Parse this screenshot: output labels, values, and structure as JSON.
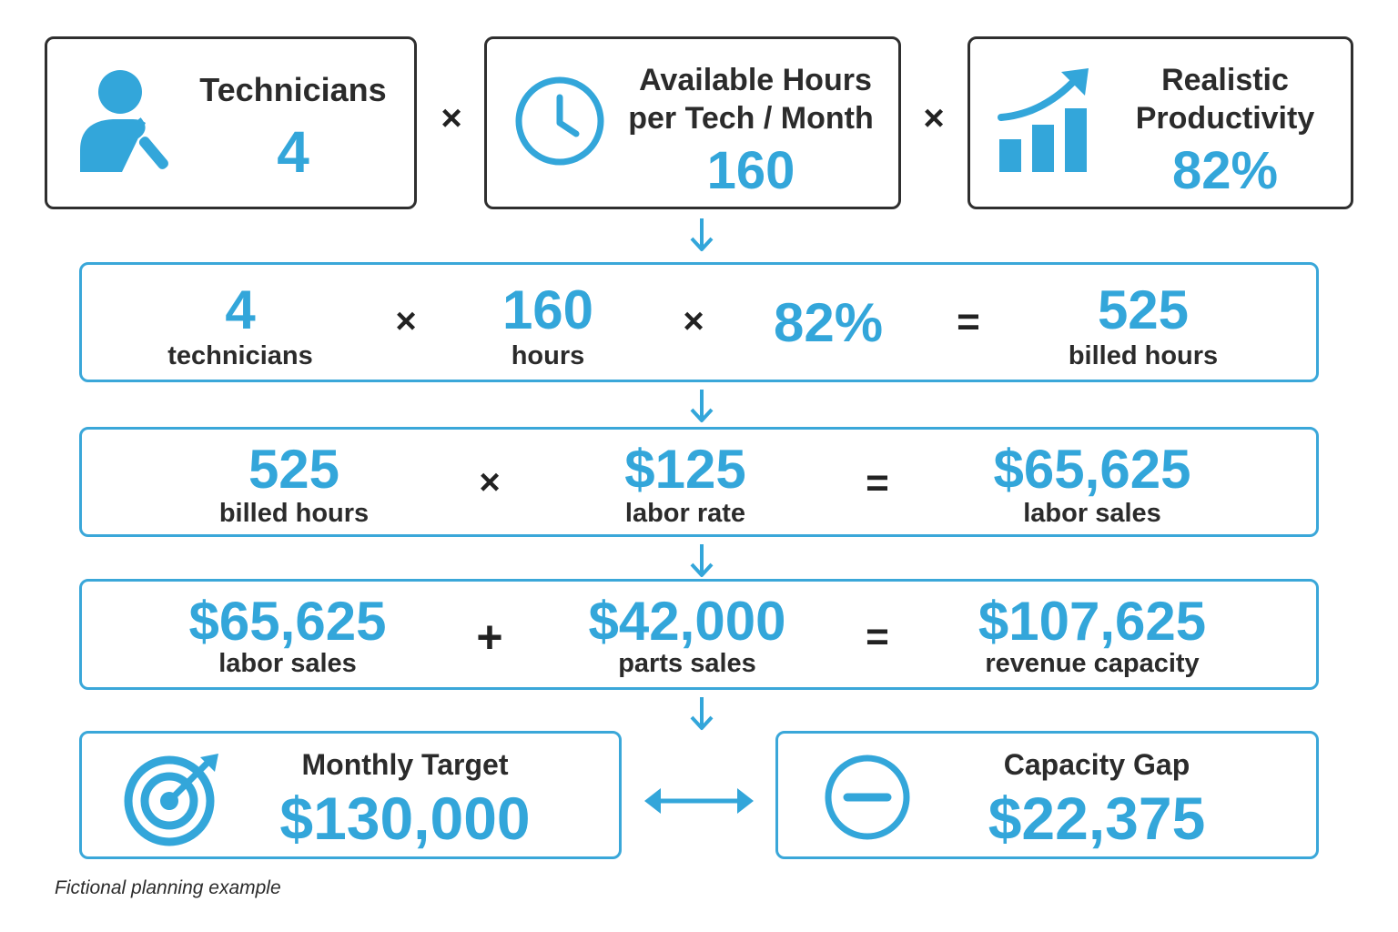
{
  "colors": {
    "accent": "#33a6da",
    "text": "#2b2b2b",
    "border_dark": "#2f2f2f"
  },
  "inputs": {
    "technicians": {
      "title": "Technicians",
      "value": "4",
      "icon": "technician-wrench-icon"
    },
    "hours": {
      "title_line1": "Available Hours",
      "title_line2": "per Tech / Month",
      "value": "160",
      "icon": "clock-icon"
    },
    "productivity": {
      "title_line1": "Realistic",
      "title_line2": "Productivity",
      "value": "82%",
      "icon": "growth-chart-icon"
    },
    "op1": "×",
    "op2": "×"
  },
  "step1": {
    "a_value": "4",
    "a_label": "technicians",
    "op1": "×",
    "b_value": "160",
    "b_label": "hours",
    "op2": "×",
    "c_value": "82%",
    "eq": "=",
    "r_value": "525",
    "r_label": "billed hours"
  },
  "step2": {
    "a_value": "525",
    "a_label": "billed hours",
    "op": "×",
    "b_value": "$125",
    "b_label": "labor rate",
    "eq": "=",
    "r_value": "$65,625",
    "r_label": "labor sales"
  },
  "step3": {
    "a_value": "$65,625",
    "a_label": "labor sales",
    "op": "+",
    "b_value": "$42,000",
    "b_label": "parts sales",
    "eq": "=",
    "r_value": "$107,625",
    "r_label": "revenue capacity"
  },
  "target": {
    "title": "Monthly Target",
    "value": "$130,000",
    "icon": "target-icon"
  },
  "gap": {
    "title": "Capacity Gap",
    "value": "$22,375",
    "icon": "minus-circle-icon"
  },
  "footnote": "Fictional planning example"
}
